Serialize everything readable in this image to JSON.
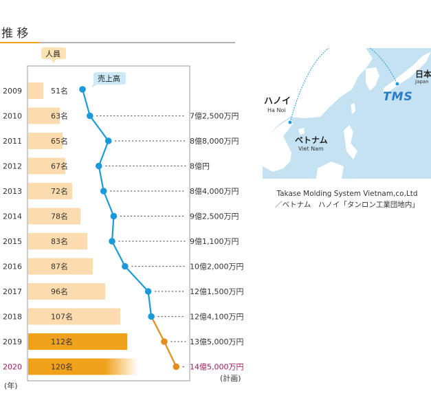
{
  "section_title": "推 移",
  "chart_data": {
    "type": "bar",
    "categories": [
      "2009",
      "2010",
      "2011",
      "2012",
      "2013",
      "2014",
      "2015",
      "2016",
      "2017",
      "2018",
      "2019",
      "2020"
    ],
    "series": [
      {
        "name": "人員",
        "values": [
          51,
          63,
          65,
          67,
          72,
          78,
          83,
          87,
          96,
          107,
          112,
          120
        ],
        "labels": [
          "51名",
          "63名",
          "65名",
          "67名",
          "72名",
          "78名",
          "83名",
          "87名",
          "96名",
          "107名",
          "112名",
          "120名"
        ]
      },
      {
        "name": "売上高",
        "values": [
          null,
          7.25,
          8.8,
          8,
          8.4,
          9.25,
          9.11,
          10.2,
          12.15,
          12.41,
          13.5,
          14.5
        ],
        "labels": [
          "",
          "7億2,500万円",
          "8億8,000万円",
          "8億円",
          "8億4,000万円",
          "9億2,500万円",
          "9億1,100万円",
          "10億2,000万円",
          "12億1,500万円",
          "12億4,100万円",
          "13億5,000万円",
          "14億5,000万円"
        ]
      }
    ],
    "highlight_years": [
      "2019",
      "2020"
    ],
    "forecast_year": "2020",
    "forecast_note": "(計画)",
    "x_unit_label": "(年)",
    "colors": {
      "bar_normal": "#fcdcae",
      "bar_highlight": "#f0a21c",
      "line_normal": "#1a9ad8",
      "line_highlight": "#e58c1e",
      "forecast_text": "#9b1a5a",
      "headcount_badge": "#fde3b3",
      "sales_badge": "#cde8f6"
    }
  },
  "map": {
    "japan_label": "日本",
    "japan_label_en": "Japan",
    "hanoi_label": "ハノイ",
    "hanoi_label_en": "Ha Noi",
    "vietnam_label": "ベトナム",
    "vietnam_label_en": "Viet Nam",
    "logo_text": "TMS",
    "caption_line1": "Takase Molding System Vietnam,co,Ltd",
    "caption_line2": "／ベトナム　ハノイ「タンロン工業団地内」"
  }
}
